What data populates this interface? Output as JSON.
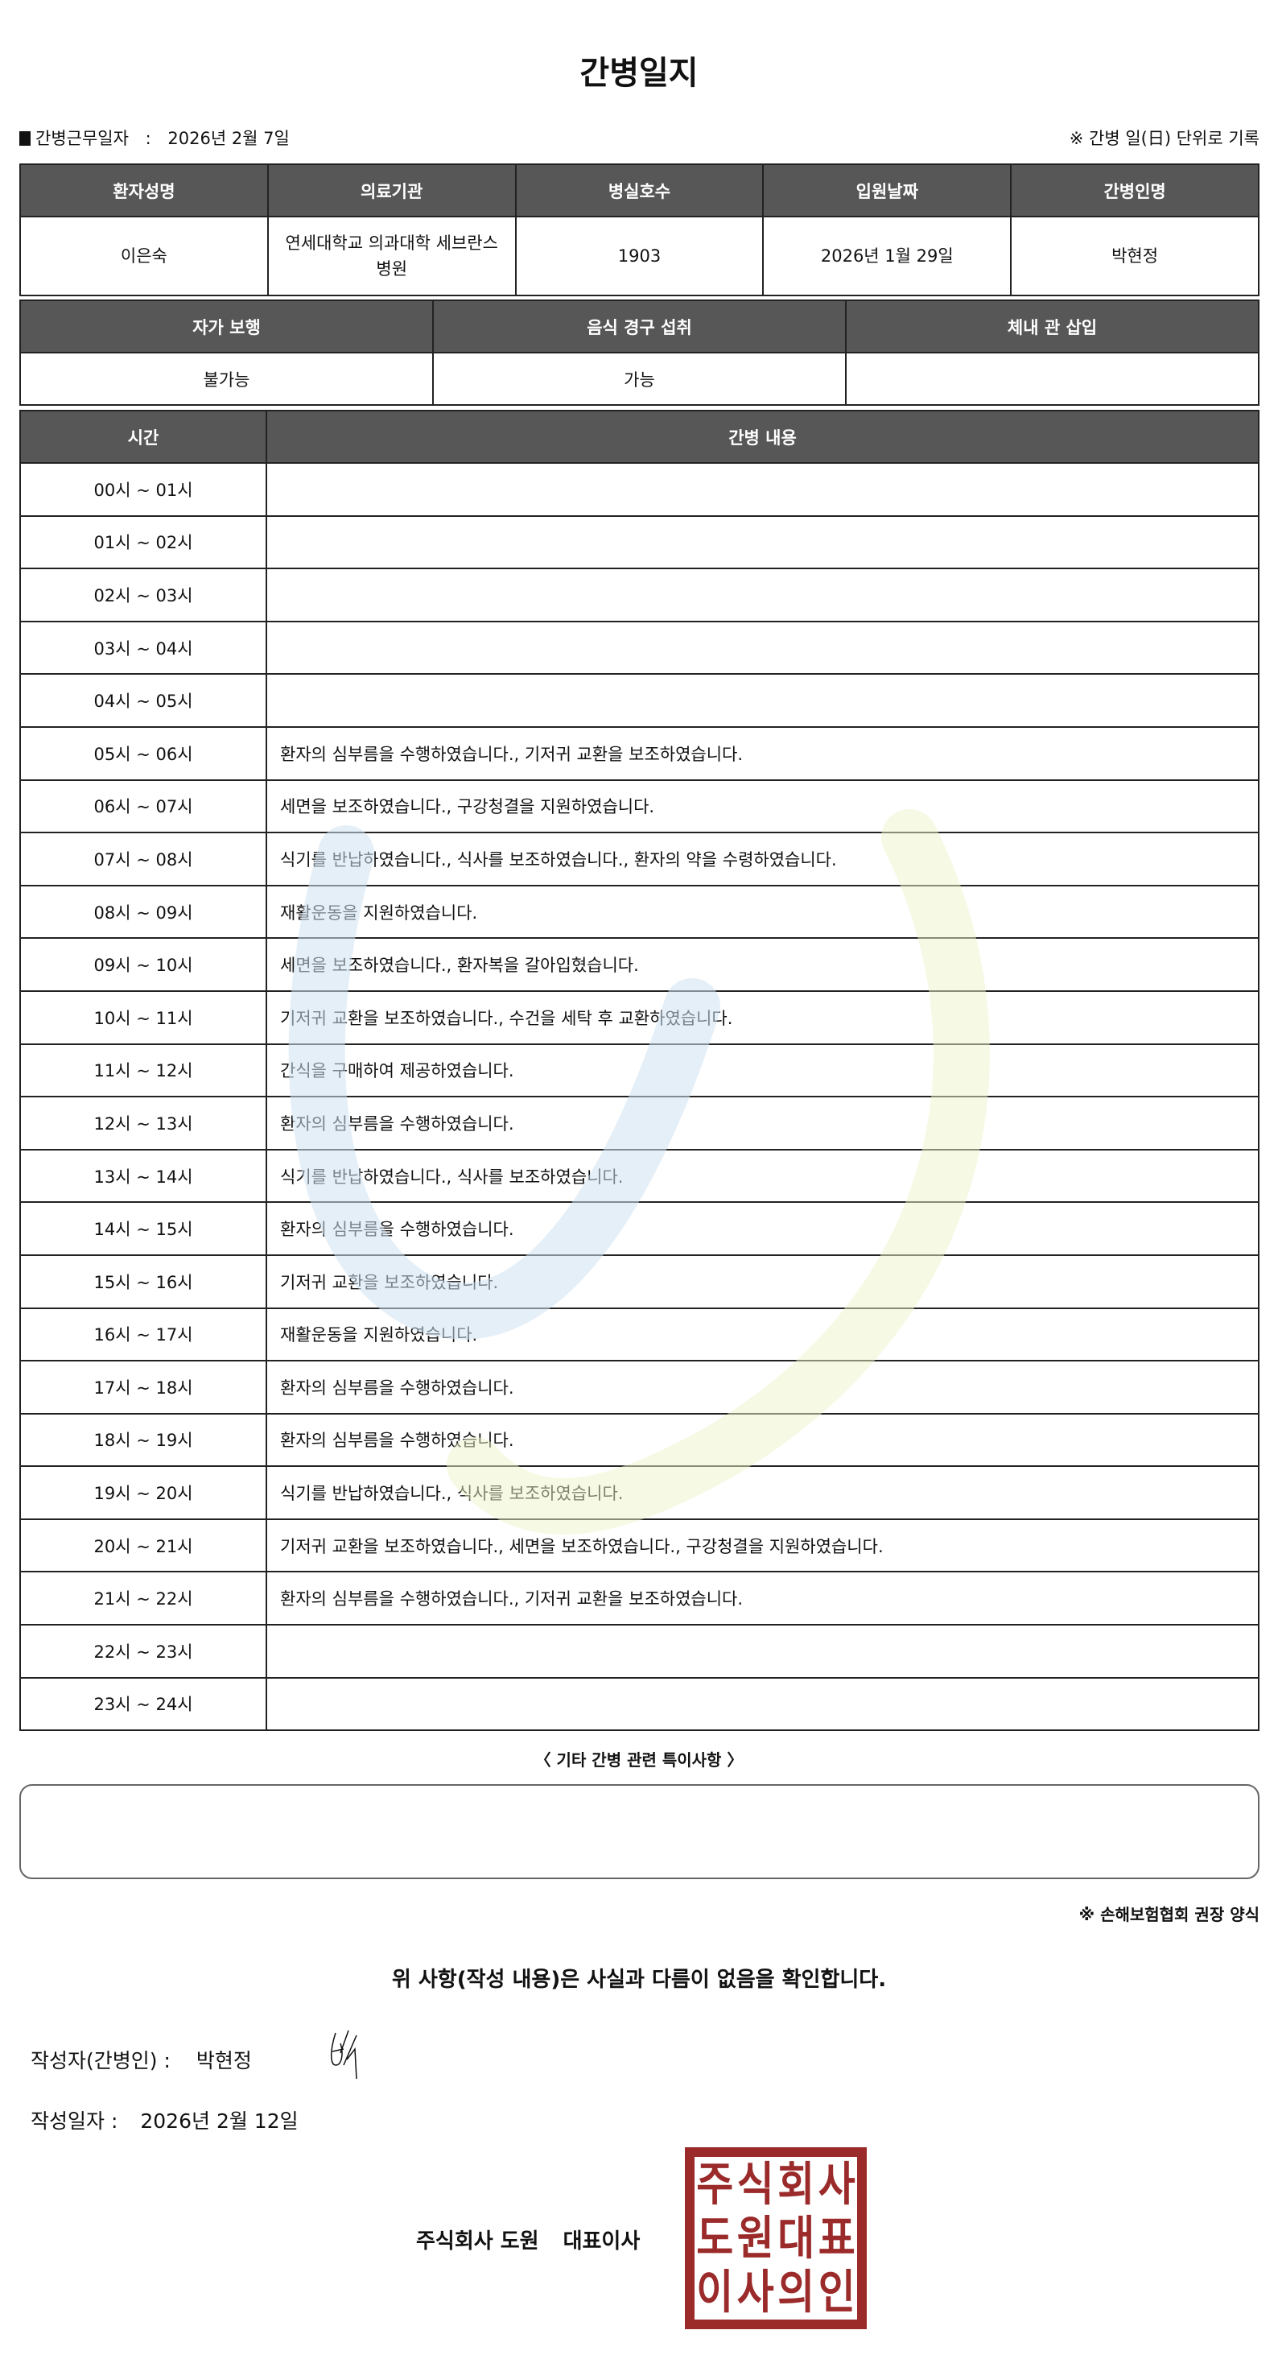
{
  "title": "간병일지",
  "work_date": {
    "label": "간병근무일자",
    "separator": ":",
    "value": "2026년 2월 7일"
  },
  "work_note": "※ 간병 일(日) 단위로 기록",
  "patient_info": {
    "headers": [
      "환자성명",
      "의료기관",
      "병실호수",
      "입원날짜",
      "간병인명"
    ],
    "values": [
      "이은숙",
      "연세대학교 의과대학 세브란스병원",
      "1903",
      "2026년 1월 29일",
      "박현정"
    ]
  },
  "status_info": {
    "headers": [
      "자가 보행",
      "음식 경구 섭취",
      "체내 관 삽입"
    ],
    "values": [
      "불가능",
      "가능",
      ""
    ]
  },
  "log": {
    "headers": [
      "시간",
      "간병 내용"
    ],
    "rows": [
      {
        "time": "00시 ~ 01시",
        "content": ""
      },
      {
        "time": "01시 ~ 02시",
        "content": ""
      },
      {
        "time": "02시 ~ 03시",
        "content": ""
      },
      {
        "time": "03시 ~ 04시",
        "content": ""
      },
      {
        "time": "04시 ~ 05시",
        "content": ""
      },
      {
        "time": "05시 ~ 06시",
        "content": "환자의 심부름을 수행하였습니다., 기저귀 교환을 보조하였습니다."
      },
      {
        "time": "06시 ~ 07시",
        "content": "세면을 보조하였습니다., 구강청결을 지원하였습니다."
      },
      {
        "time": "07시 ~ 08시",
        "content": "식기를 반납하였습니다., 식사를 보조하였습니다., 환자의 약을 수령하였습니다."
      },
      {
        "time": "08시 ~ 09시",
        "content": "재활운동을 지원하였습니다."
      },
      {
        "time": "09시 ~ 10시",
        "content": "세면을 보조하였습니다., 환자복을 갈아입혔습니다."
      },
      {
        "time": "10시 ~ 11시",
        "content": "기저귀 교환을 보조하였습니다., 수건을 세탁 후 교환하였습니다."
      },
      {
        "time": "11시 ~ 12시",
        "content": "간식을 구매하여 제공하였습니다."
      },
      {
        "time": "12시 ~ 13시",
        "content": "환자의 심부름을 수행하였습니다."
      },
      {
        "time": "13시 ~ 14시",
        "content": "식기를 반납하였습니다., 식사를 보조하였습니다."
      },
      {
        "time": "14시 ~ 15시",
        "content": "환자의 심부름을 수행하였습니다."
      },
      {
        "time": "15시 ~ 16시",
        "content": "기저귀 교환을 보조하였습니다."
      },
      {
        "time": "16시 ~ 17시",
        "content": "재활운동을 지원하였습니다."
      },
      {
        "time": "17시 ~ 18시",
        "content": "환자의 심부름을 수행하였습니다."
      },
      {
        "time": "18시 ~ 19시",
        "content": "환자의 심부름을 수행하였습니다."
      },
      {
        "time": "19시 ~ 20시",
        "content": "식기를 반납하였습니다., 식사를 보조하였습니다."
      },
      {
        "time": "20시 ~ 21시",
        "content": "기저귀 교환을 보조하였습니다., 세면을 보조하였습니다., 구강청결을 지원하였습니다."
      },
      {
        "time": "21시 ~ 22시",
        "content": "환자의 심부름을 수행하였습니다., 기저귀 교환을 보조하였습니다."
      },
      {
        "time": "22시 ~ 23시",
        "content": ""
      },
      {
        "time": "23시 ~ 24시",
        "content": ""
      }
    ]
  },
  "notes": {
    "label": "〈 기타 간병 관련 특이사항 〉",
    "value": ""
  },
  "form_note": "※ 손해보험협회 권장 양식",
  "confirmation": "위 사항(작성 내용)은 사실과 다름이 없음을 확인합니다.",
  "writer": {
    "label": "작성자(간병인) :",
    "value": "박현정"
  },
  "write_date": {
    "label": "작성일자 :",
    "value": "2026년 2월 12일"
  },
  "company": {
    "name": "주식회사 도원",
    "title": "대표이사"
  },
  "stamp": {
    "text": [
      "주",
      "식",
      "회",
      "사",
      "도",
      "원",
      "대",
      "표",
      "이",
      "사",
      "의",
      "인"
    ],
    "color": "#9b2a2a"
  },
  "colors": {
    "header_bg": "#575757",
    "watermark_blue": "#cfe2f3",
    "watermark_yellow": "#f4f6d6"
  }
}
